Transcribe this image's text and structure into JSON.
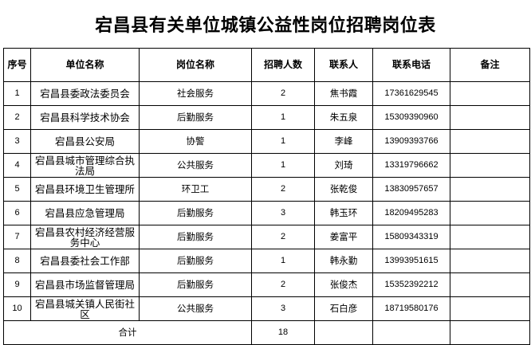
{
  "title": "宕昌县有关单位城镇公益性岗位招聘岗位表",
  "headers": [
    "序号",
    "单位名称",
    "岗位名称",
    "招聘人数",
    "联系人",
    "联系电话",
    "备注"
  ],
  "rows": [
    [
      "1",
      "宕昌县委政法委员会",
      "社会服务",
      "2",
      "焦书霞",
      "17361629545",
      ""
    ],
    [
      "2",
      "宕昌县科学技术协会",
      "后勤服务",
      "1",
      "朱五泉",
      "15309390960",
      ""
    ],
    [
      "3",
      "宕昌县公安局",
      "协警",
      "1",
      "李峰",
      "13909393766",
      ""
    ],
    [
      "4",
      "宕昌县城市管理综合执法局",
      "公共服务",
      "1",
      "刘琦",
      "13319796662",
      ""
    ],
    [
      "5",
      "宕昌县环境卫生管理所",
      "环卫工",
      "2",
      "张乾俊",
      "13830957657",
      ""
    ],
    [
      "6",
      "宕昌县应急管理局",
      "后勤服务",
      "3",
      "韩玉环",
      "18209495283",
      ""
    ],
    [
      "7",
      "宕昌县农村经济经营服务中心",
      "后勤服务",
      "2",
      "姜富平",
      "15809343319",
      ""
    ],
    [
      "8",
      "宕昌县委社会工作部",
      "后勤服务",
      "1",
      "韩永勤",
      "13993951615",
      ""
    ],
    [
      "9",
      "宕昌县市场监督管理局",
      "后勤服务",
      "2",
      "张俊杰",
      "15352392212",
      ""
    ],
    [
      "10",
      "宕昌县城关镇人民街社区",
      "公共服务",
      "3",
      "石白彦",
      "18719580176",
      ""
    ]
  ],
  "total": {
    "label": "合计",
    "count": "18"
  }
}
